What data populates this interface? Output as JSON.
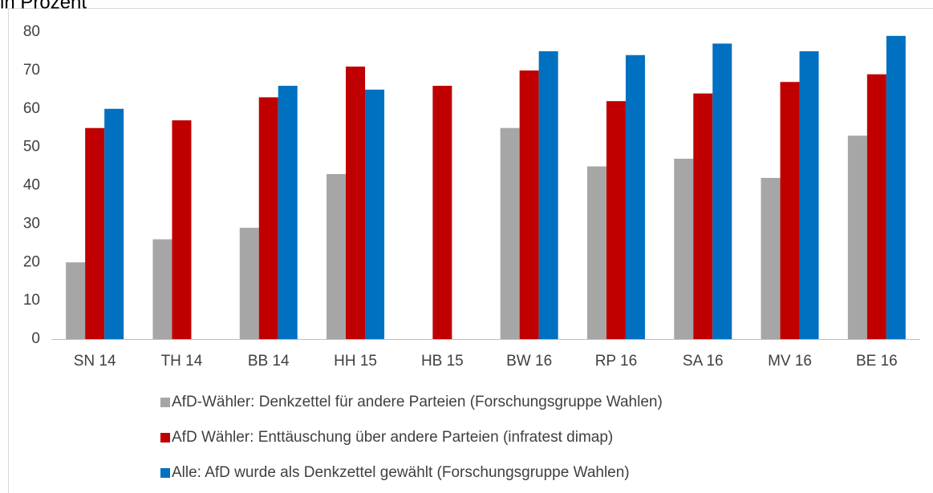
{
  "chart_data": {
    "type": "bar",
    "title": "in Prozent",
    "categories": [
      "SN 14",
      "TH 14",
      "BB 14",
      "HH 15",
      "HB 15",
      "BW 16",
      "RP 16",
      "SA 16",
      "MV 16",
      "BE 16"
    ],
    "series": [
      {
        "name": "AfD-Wähler: Denkzettel für andere Parteien (Forschungsgruppe Wahlen)",
        "color": "#a6a6a6",
        "values": [
          20,
          26,
          29,
          43,
          null,
          55,
          45,
          47,
          42,
          53
        ]
      },
      {
        "name": "AfD Wähler: Enttäuschung über andere Parteien (infratest dimap)",
        "color": "#c00000",
        "values": [
          55,
          57,
          63,
          71,
          66,
          70,
          62,
          64,
          67,
          69
        ]
      },
      {
        "name": "Alle: AfD wurde als Denkzettel gewählt (Forschungsgruppe Wahlen)",
        "color": "#0070c0",
        "values": [
          60,
          null,
          66,
          65,
          null,
          75,
          74,
          77,
          75,
          79
        ]
      }
    ],
    "ylim": [
      0,
      80
    ],
    "yticks": [
      0,
      10,
      20,
      30,
      40,
      50,
      60,
      70,
      80
    ],
    "grid": false,
    "legend": "bottom"
  }
}
